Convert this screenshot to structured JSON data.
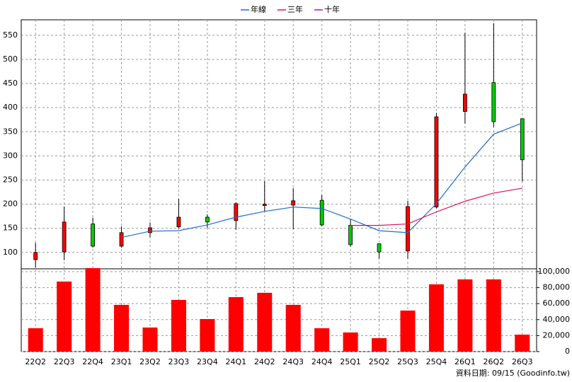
{
  "chart_data": {
    "type": "candlestick",
    "categories": [
      "22Q2",
      "22Q3",
      "22Q4",
      "23Q1",
      "23Q2",
      "23Q3",
      "23Q4",
      "24Q1",
      "24Q2",
      "24Q3",
      "24Q4",
      "25Q1",
      "25Q2",
      "25Q3",
      "25Q4",
      "26Q1",
      "26Q2",
      "26Q3"
    ],
    "open": [
      85,
      101,
      159,
      113,
      141,
      153,
      173,
      166,
      197,
      198,
      208,
      156,
      118,
      103,
      194,
      392,
      452,
      377
    ],
    "high": [
      120,
      195,
      172,
      154,
      162,
      211,
      179,
      204,
      248,
      233,
      219,
      169,
      118,
      207,
      389,
      555,
      575,
      377
    ],
    "low": [
      69,
      84,
      110,
      110,
      131,
      150,
      151,
      147,
      184,
      148,
      154,
      112,
      87,
      87,
      191,
      367,
      360,
      247
    ],
    "close": [
      100,
      163,
      113,
      141,
      151,
      173,
      163,
      201,
      200,
      207,
      157,
      116,
      101,
      195,
      381,
      428,
      371,
      292
    ],
    "up_color": "#ff0000",
    "down_color": "#00cc00",
    "series": [
      {
        "name": "年線",
        "color": "#1f6fd0",
        "values": [
          null,
          null,
          null,
          131,
          144,
          145,
          157,
          173,
          185,
          194,
          191,
          169,
          145,
          141,
          201,
          277,
          345,
          368
        ]
      },
      {
        "name": "三年",
        "color": "#e0105a",
        "values": [
          null,
          null,
          null,
          null,
          null,
          null,
          null,
          null,
          null,
          null,
          null,
          156,
          156,
          159,
          184,
          206,
          223,
          233
        ]
      },
      {
        "name": "十年",
        "color": "#9a1fa6",
        "values": [
          null,
          null,
          null,
          null,
          null,
          null,
          null,
          null,
          null,
          null,
          null,
          null,
          null,
          null,
          null,
          null,
          null,
          null
        ]
      }
    ],
    "ylim": [
      66,
      582
    ],
    "yticks": [
      100,
      150,
      200,
      250,
      300,
      350,
      400,
      450,
      500,
      550
    ],
    "grid": true,
    "volume": {
      "color": "#ff0000",
      "values": [
        29200,
        87600,
        104400,
        58400,
        30100,
        64600,
        40700,
        68100,
        73500,
        58400,
        29200,
        23900,
        16800,
        51300,
        84100,
        90300,
        90300,
        21200
      ],
      "ylim": [
        0,
        103500
      ],
      "yticks": [
        0,
        {
          "value": 20000,
          "label": "20,000"
        },
        {
          "value": 40000,
          "label": "40,000"
        },
        {
          "value": 60000,
          "label": "60,000"
        },
        {
          "value": 80000,
          "label": "80,000"
        },
        {
          "value": 100000,
          "label": "100,000"
        }
      ]
    },
    "source": "資料日期: 09/15 (Goodinfo.tw)"
  }
}
